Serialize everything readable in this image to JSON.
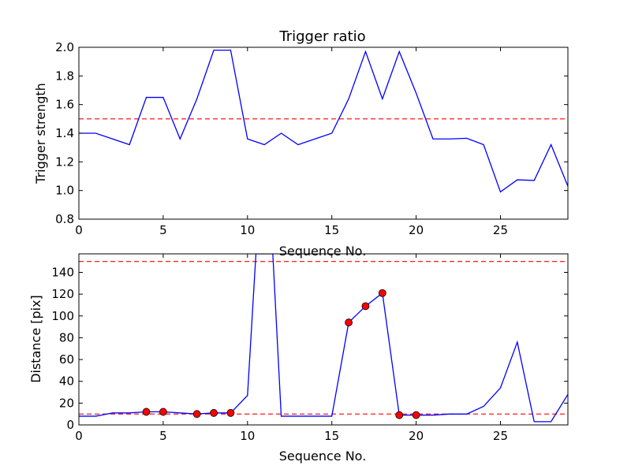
{
  "chart_data": [
    {
      "type": "line",
      "title": "Trigger ratio",
      "xlabel": "Sequence No.",
      "ylabel": "Trigger strength",
      "xlim": [
        0,
        29
      ],
      "ylim": [
        0.8,
        2.0
      ],
      "xticks": [
        0,
        5,
        10,
        15,
        20,
        25
      ],
      "yticks": [
        "0.8",
        "1.0",
        "1.2",
        "1.4",
        "1.6",
        "1.8",
        "2.0"
      ],
      "grid": false,
      "series": [
        {
          "color": "#0000ff",
          "x": [
            0,
            1,
            2,
            3,
            4,
            5,
            6,
            7,
            8,
            9,
            10,
            11,
            12,
            13,
            14,
            15,
            16,
            17,
            18,
            19,
            20,
            21,
            22,
            23,
            24,
            25,
            26,
            27,
            28,
            29
          ],
          "values": [
            1.4,
            1.4,
            1.36,
            1.32,
            1.65,
            1.65,
            1.36,
            1.64,
            1.98,
            1.98,
            1.36,
            1.32,
            1.4,
            1.32,
            1.36,
            1.4,
            1.64,
            1.97,
            1.64,
            1.97,
            1.68,
            1.36,
            1.36,
            1.365,
            1.32,
            0.99,
            1.075,
            1.07,
            1.32,
            1.03
          ]
        }
      ],
      "reference_lines": [
        {
          "y": 1.5,
          "color": "#ff0000",
          "style": "dashed"
        }
      ]
    },
    {
      "type": "line",
      "title": "",
      "xlabel": "Sequence No.",
      "ylabel": "Distance [pix]",
      "xlim": [
        0,
        29
      ],
      "ylim": [
        0,
        157
      ],
      "xticks": [
        0,
        5,
        10,
        15,
        20,
        25
      ],
      "yticks": [
        "0",
        "20",
        "40",
        "60",
        "80",
        "100",
        "120",
        "140"
      ],
      "grid": false,
      "series": [
        {
          "color": "#0000ff",
          "x": [
            0,
            1,
            2,
            3,
            4,
            5,
            6,
            7,
            8,
            9,
            10,
            10.5,
            11.5,
            12,
            13,
            14,
            15,
            16,
            17,
            18,
            19,
            20,
            21,
            22,
            23,
            24,
            25,
            26,
            27,
            28,
            29
          ],
          "values": [
            8,
            8,
            11,
            11,
            12,
            12,
            11,
            10,
            11,
            11,
            27,
            157,
            157,
            8,
            8,
            8,
            8,
            94,
            109,
            121,
            9,
            9,
            9,
            10,
            10,
            17,
            34,
            76,
            3,
            3,
            28
          ]
        }
      ],
      "markers": {
        "color": "#ff0000",
        "x": [
          4,
          5,
          7,
          8,
          9,
          16,
          17,
          18,
          19,
          20
        ],
        "values": [
          12,
          12,
          10,
          11,
          11,
          94,
          109,
          121,
          9,
          9
        ]
      },
      "reference_lines": [
        {
          "y": 10,
          "color": "#ff0000",
          "style": "dashed"
        },
        {
          "y": 150,
          "color": "#ff0000",
          "style": "dashed"
        }
      ]
    }
  ]
}
